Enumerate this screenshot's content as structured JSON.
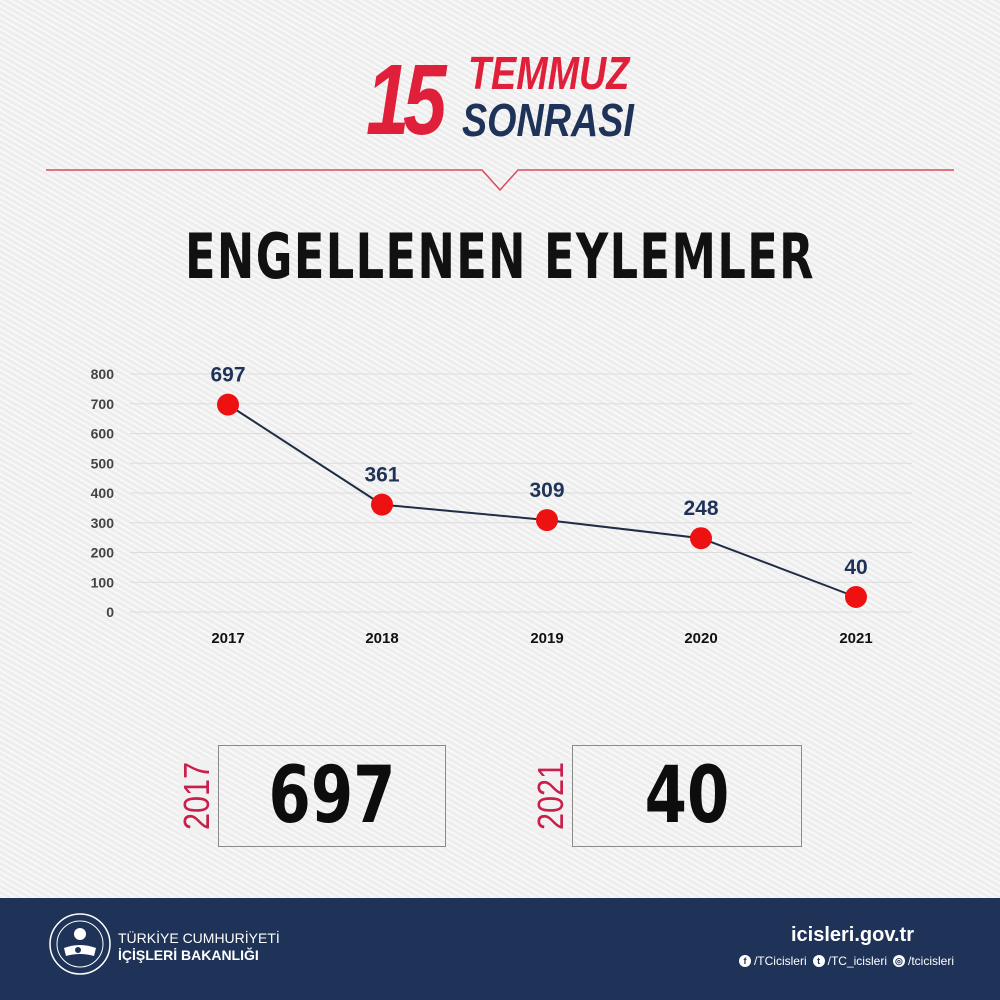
{
  "header": {
    "number": "15",
    "word1": "TEMMUZ",
    "word2": "SONRASI",
    "title": "ENGELLENEN EYLEMLER"
  },
  "colors": {
    "red": "#e0203a",
    "navy": "#1f3358",
    "marker": "#ee1111",
    "year_label": "#c8204a"
  },
  "chart_data": {
    "type": "line",
    "title": "ENGELLENEN EYLEMLER",
    "categories": [
      "2017",
      "2018",
      "2019",
      "2020",
      "2021"
    ],
    "values": [
      697,
      361,
      309,
      248,
      40
    ],
    "data_labels": [
      "697",
      "361",
      "309",
      "248",
      "40"
    ],
    "xlabel": "",
    "ylabel": "",
    "ylim": [
      0,
      800
    ],
    "yticks": [
      "0",
      "100",
      "200",
      "300",
      "400",
      "500",
      "600",
      "700",
      "800"
    ],
    "grid": true,
    "legend": "none"
  },
  "summary": [
    {
      "year": "2017",
      "value": "697"
    },
    {
      "year": "2021",
      "value": "40"
    }
  ],
  "footer": {
    "ministry_line1": "TÜRKİYE CUMHURİYETİ",
    "ministry_line2": "İÇİŞLERİ BAKANLIĞI",
    "website": "icisleri.gov.tr",
    "socials": [
      {
        "icon": "facebook-icon",
        "glyph": "f",
        "handle": "/TCicisleri"
      },
      {
        "icon": "twitter-icon",
        "glyph": "t",
        "handle": "/TC_icisleri"
      },
      {
        "icon": "instagram-icon",
        "glyph": "◎",
        "handle": "/tcicisleri"
      }
    ]
  }
}
